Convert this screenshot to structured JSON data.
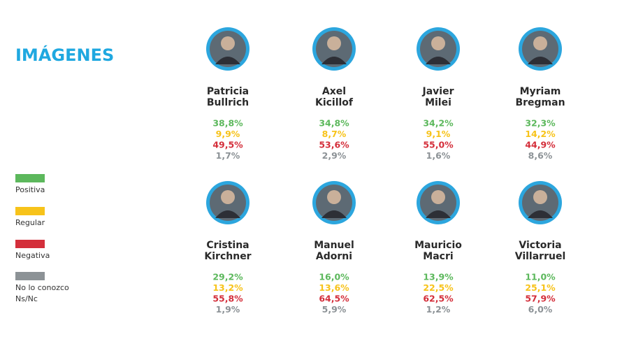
{
  "header": {
    "title": "IMÁGENES"
  },
  "legend": [
    {
      "label": [
        "Positiva"
      ],
      "color": "#5cb85c"
    },
    {
      "label": [
        "Regular"
      ],
      "color": "#f7c31a"
    },
    {
      "label": [
        "Negativa"
      ],
      "color": "#d42f3b"
    },
    {
      "label": [
        "No lo conozco",
        "Ns/Nc"
      ],
      "color": "#8c9296"
    }
  ],
  "people": [
    {
      "name": [
        "Patricia",
        "Bullrich"
      ],
      "values": [
        "38,8%",
        "9,9%",
        "49,5%",
        "1,7%"
      ]
    },
    {
      "name": [
        "Axel",
        "Kicillof"
      ],
      "values": [
        "34,8%",
        "8,7%",
        "53,6%",
        "2,9%"
      ]
    },
    {
      "name": [
        "Javier",
        "Milei"
      ],
      "values": [
        "34,2%",
        "9,1%",
        "55,0%",
        "1,6%"
      ]
    },
    {
      "name": [
        "Myriam",
        "Bregman"
      ],
      "values": [
        "32,3%",
        "14,2%",
        "44,9%",
        "8,6%"
      ]
    },
    {
      "name": [
        "Cristina",
        "Kirchner"
      ],
      "values": [
        "29,2%",
        "13,2%",
        "55,8%",
        "1,9%"
      ]
    },
    {
      "name": [
        "Manuel",
        "Adorni"
      ],
      "values": [
        "16,0%",
        "13,6%",
        "64,5%",
        "5,9%"
      ]
    },
    {
      "name": [
        "Mauricio",
        "Macri"
      ],
      "values": [
        "13,9%",
        "22,5%",
        "62,5%",
        "1,2%"
      ]
    },
    {
      "name": [
        "Victoria",
        "Villarruel"
      ],
      "values": [
        "11,0%",
        "25,1%",
        "57,9%",
        "6,0%"
      ]
    }
  ]
}
